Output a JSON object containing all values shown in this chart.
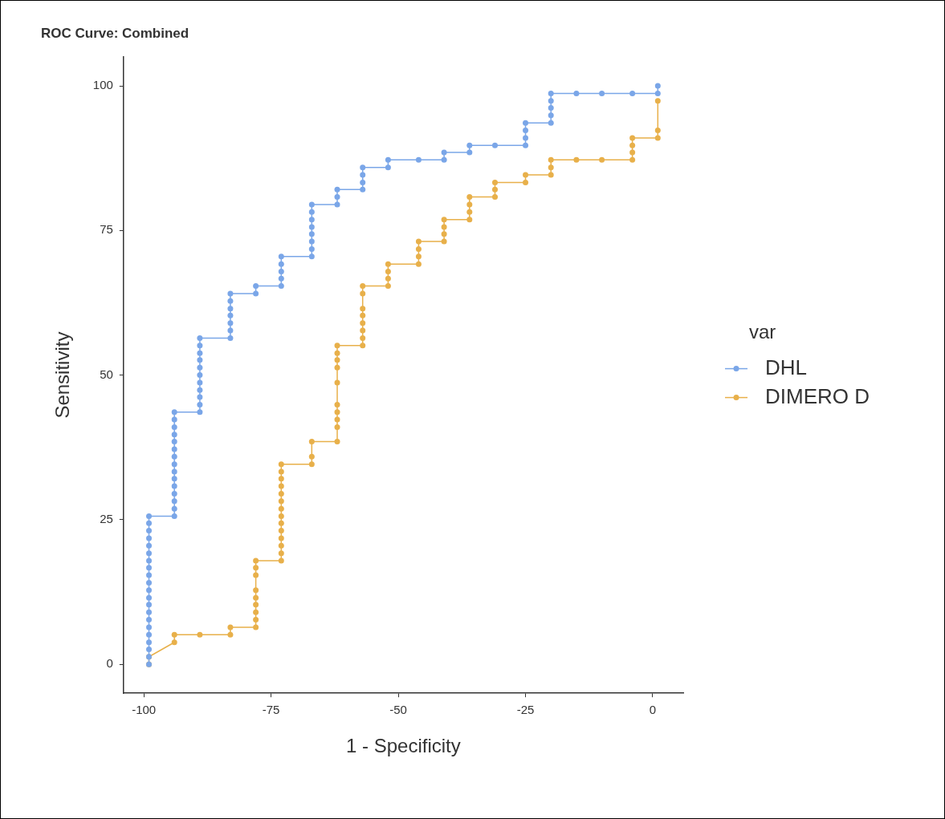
{
  "chart_data": {
    "type": "line",
    "title": "ROC Curve: Combined",
    "xlabel": "1 - Specificity",
    "ylabel": "Sensitivity",
    "legend_title": "var",
    "legend": "right",
    "grid": false,
    "marker": "circle",
    "line_style": "solid",
    "xlim": [
      -104,
      6
    ],
    "xticks": [
      -100,
      -75,
      -50,
      -25,
      0
    ],
    "ylim": [
      -5,
      105
    ],
    "yticks": [
      0,
      25,
      50,
      75,
      100
    ],
    "series": [
      {
        "name": "DHL",
        "color": "#7aa6e8",
        "x": [
          -99,
          -99,
          -99,
          -99,
          -99,
          -99,
          -99,
          -99,
          -99,
          -99,
          -99,
          -99,
          -99,
          -99,
          -99,
          -99,
          -99,
          -99,
          -99,
          -99,
          -99,
          -94,
          -94,
          -94,
          -94,
          -94,
          -94,
          -94,
          -94,
          -94,
          -94,
          -94,
          -94,
          -94,
          -94,
          -94,
          -89,
          -89,
          -89,
          -89,
          -89,
          -89,
          -89,
          -89,
          -89,
          -89,
          -89,
          -83,
          -83,
          -83,
          -83,
          -83,
          -83,
          -83,
          -78,
          -78,
          -73,
          -73,
          -73,
          -73,
          -73,
          -67,
          -67,
          -67,
          -67,
          -67,
          -67,
          -67,
          -67,
          -62,
          -62,
          -62,
          -57,
          -57,
          -57,
          -57,
          -52,
          -52,
          -46,
          -41,
          -41,
          -36,
          -36,
          -31,
          -25,
          -25,
          -25,
          -25,
          -20,
          -20,
          -20,
          -20,
          -20,
          -15,
          -10,
          -4,
          1,
          1
        ],
        "values": [
          0,
          1.3,
          2.6,
          3.8,
          5.1,
          6.4,
          7.7,
          9.0,
          10.3,
          11.5,
          12.8,
          14.1,
          15.4,
          16.7,
          17.9,
          19.2,
          20.5,
          21.8,
          23.1,
          24.4,
          25.6,
          25.6,
          26.9,
          28.2,
          29.5,
          30.8,
          32.1,
          33.3,
          34.6,
          35.9,
          37.2,
          38.5,
          39.7,
          41.0,
          42.3,
          43.6,
          43.6,
          44.9,
          46.2,
          47.4,
          48.7,
          50.0,
          51.3,
          52.6,
          53.8,
          55.1,
          56.4,
          56.4,
          57.7,
          59.0,
          60.3,
          61.5,
          62.8,
          64.1,
          64.1,
          65.4,
          65.4,
          66.7,
          67.9,
          69.2,
          70.5,
          70.5,
          71.8,
          73.1,
          74.4,
          75.6,
          76.9,
          78.2,
          79.5,
          79.5,
          80.8,
          82.1,
          82.1,
          83.3,
          84.6,
          85.9,
          85.9,
          87.2,
          87.2,
          87.2,
          88.5,
          88.5,
          89.7,
          89.7,
          89.7,
          91.0,
          92.3,
          93.6,
          93.6,
          94.9,
          96.2,
          97.4,
          98.7,
          98.7,
          98.7,
          98.7,
          98.7,
          100
        ]
      },
      {
        "name": "DIMERO D",
        "color": "#e8b04a",
        "x": [
          -99,
          -99,
          -94,
          -94,
          -89,
          -83,
          -83,
          -78,
          -78,
          -78,
          -78,
          -78,
          -78,
          -78,
          -78,
          -78,
          -73,
          -73,
          -73,
          -73,
          -73,
          -73,
          -73,
          -73,
          -73,
          -73,
          -73,
          -73,
          -73,
          -73,
          -67,
          -67,
          -67,
          -62,
          -62,
          -62,
          -62,
          -62,
          -62,
          -62,
          -62,
          -62,
          -62,
          -57,
          -57,
          -57,
          -57,
          -57,
          -57,
          -57,
          -57,
          -52,
          -52,
          -52,
          -52,
          -46,
          -46,
          -46,
          -46,
          -41,
          -41,
          -41,
          -41,
          -36,
          -36,
          -36,
          -36,
          -31,
          -31,
          -31,
          -25,
          -25,
          -20,
          -20,
          -20,
          -15,
          -10,
          -4,
          -4,
          -4,
          -4,
          1,
          1,
          1
        ],
        "values": [
          0,
          1.3,
          3.8,
          5.1,
          5.1,
          5.1,
          6.4,
          6.4,
          7.7,
          9.0,
          10.3,
          11.5,
          12.8,
          15.4,
          16.7,
          17.9,
          17.9,
          19.2,
          20.5,
          21.8,
          23.1,
          24.4,
          25.6,
          26.9,
          28.2,
          29.5,
          30.8,
          32.1,
          33.3,
          34.6,
          34.6,
          35.9,
          38.5,
          38.5,
          41.0,
          42.3,
          43.6,
          44.9,
          48.7,
          51.3,
          52.6,
          53.8,
          55.1,
          55.1,
          56.4,
          57.7,
          59.0,
          60.3,
          61.5,
          64.1,
          65.4,
          65.4,
          66.7,
          67.9,
          69.2,
          69.2,
          70.5,
          71.8,
          73.1,
          73.1,
          74.4,
          75.6,
          76.9,
          76.9,
          78.2,
          79.5,
          80.8,
          80.8,
          82.1,
          83.3,
          83.3,
          84.6,
          84.6,
          85.9,
          87.2,
          87.2,
          87.2,
          87.2,
          88.5,
          89.7,
          91.0,
          91.0,
          92.3,
          97.4
        ]
      }
    ]
  }
}
